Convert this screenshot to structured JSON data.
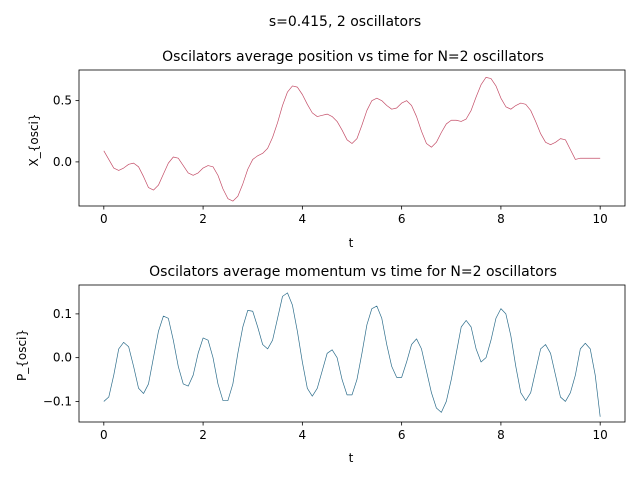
{
  "suptitle": "s=0.415, 2 oscillators",
  "chart_data": [
    {
      "type": "line",
      "title": "Oscilators average position vs time for N=2 oscillators",
      "xlabel": "t",
      "ylabel": "X_{osci}",
      "xlim": [
        -0.5,
        10.5
      ],
      "ylim": [
        -0.36,
        0.75
      ],
      "xticks": [
        0,
        2,
        4,
        6,
        8,
        10
      ],
      "yticks": [
        0.0,
        0.5
      ],
      "ytick_labels": [
        "0.0",
        "0.5"
      ],
      "grid": false,
      "color": "#c44e68",
      "x": [
        0.0,
        0.1,
        0.2,
        0.3,
        0.4,
        0.5,
        0.6,
        0.7,
        0.8,
        0.9,
        1.0,
        1.1,
        1.2,
        1.3,
        1.4,
        1.5,
        1.6,
        1.7,
        1.8,
        1.9,
        2.0,
        2.1,
        2.2,
        2.3,
        2.4,
        2.5,
        2.6,
        2.7,
        2.8,
        2.9,
        3.0,
        3.1,
        3.2,
        3.3,
        3.4,
        3.5,
        3.6,
        3.7,
        3.8,
        3.9,
        4.0,
        4.1,
        4.2,
        4.3,
        4.4,
        4.5,
        4.6,
        4.7,
        4.8,
        4.9,
        5.0,
        5.1,
        5.2,
        5.3,
        5.4,
        5.5,
        5.6,
        5.7,
        5.8,
        5.9,
        6.0,
        6.1,
        6.2,
        6.3,
        6.4,
        6.5,
        6.6,
        6.7,
        6.8,
        6.9,
        7.0,
        7.1,
        7.2,
        7.3,
        7.4,
        7.5,
        7.6,
        7.7,
        7.8,
        7.9,
        8.0,
        8.1,
        8.2,
        8.3,
        8.4,
        8.5,
        8.6,
        8.7,
        8.8,
        8.9,
        9.0,
        9.1,
        9.2,
        9.3,
        9.4,
        9.5,
        9.6,
        9.7,
        9.8,
        9.9,
        10.0
      ],
      "values": [
        0.09,
        0.02,
        -0.05,
        -0.07,
        -0.05,
        -0.02,
        -0.01,
        -0.04,
        -0.12,
        -0.21,
        -0.23,
        -0.19,
        -0.1,
        -0.01,
        0.04,
        0.03,
        -0.03,
        -0.09,
        -0.11,
        -0.09,
        -0.05,
        -0.03,
        -0.04,
        -0.11,
        -0.22,
        -0.3,
        -0.32,
        -0.28,
        -0.18,
        -0.06,
        0.02,
        0.05,
        0.07,
        0.11,
        0.2,
        0.32,
        0.46,
        0.57,
        0.62,
        0.61,
        0.55,
        0.47,
        0.4,
        0.37,
        0.38,
        0.39,
        0.37,
        0.33,
        0.26,
        0.18,
        0.15,
        0.19,
        0.3,
        0.42,
        0.5,
        0.52,
        0.5,
        0.46,
        0.43,
        0.44,
        0.48,
        0.5,
        0.46,
        0.37,
        0.25,
        0.15,
        0.12,
        0.16,
        0.24,
        0.31,
        0.34,
        0.34,
        0.33,
        0.35,
        0.42,
        0.53,
        0.63,
        0.69,
        0.68,
        0.62,
        0.52,
        0.45,
        0.43,
        0.46,
        0.48,
        0.47,
        0.42,
        0.33,
        0.23,
        0.16,
        0.14,
        0.16,
        0.19,
        0.18,
        0.1,
        0.02,
        0.03,
        0.03,
        0.03,
        0.03,
        0.03
      ]
    },
    {
      "type": "line",
      "title": "Oscilators average momentum vs time for N=2 oscillators",
      "xlabel": "t",
      "ylabel": "P_{osci}",
      "xlim": [
        -0.5,
        10.5
      ],
      "ylim": [
        -0.147,
        0.166
      ],
      "xticks": [
        0,
        2,
        4,
        6,
        8,
        10
      ],
      "yticks": [
        -0.1,
        0.0,
        0.1
      ],
      "ytick_labels": [
        "−0.1",
        "0.0",
        "0.1"
      ],
      "grid": false,
      "color": "#2e6e8c",
      "x": [
        0.0,
        0.1,
        0.2,
        0.3,
        0.4,
        0.5,
        0.6,
        0.7,
        0.8,
        0.9,
        1.0,
        1.1,
        1.2,
        1.3,
        1.4,
        1.5,
        1.6,
        1.7,
        1.8,
        1.9,
        2.0,
        2.1,
        2.2,
        2.3,
        2.4,
        2.5,
        2.6,
        2.7,
        2.8,
        2.9,
        3.0,
        3.1,
        3.2,
        3.3,
        3.4,
        3.5,
        3.6,
        3.7,
        3.8,
        3.9,
        4.0,
        4.1,
        4.2,
        4.3,
        4.4,
        4.5,
        4.6,
        4.7,
        4.8,
        4.9,
        5.0,
        5.1,
        5.2,
        5.3,
        5.4,
        5.5,
        5.6,
        5.7,
        5.8,
        5.9,
        6.0,
        6.1,
        6.2,
        6.3,
        6.4,
        6.5,
        6.6,
        6.7,
        6.8,
        6.9,
        7.0,
        7.1,
        7.2,
        7.3,
        7.4,
        7.5,
        7.6,
        7.7,
        7.8,
        7.9,
        8.0,
        8.1,
        8.2,
        8.3,
        8.4,
        8.5,
        8.6,
        8.7,
        8.8,
        8.9,
        9.0,
        9.1,
        9.2,
        9.3,
        9.4,
        9.5,
        9.6,
        9.7,
        9.8,
        9.9,
        10.0
      ],
      "values": [
        -0.1,
        -0.09,
        -0.04,
        0.02,
        0.035,
        0.025,
        -0.02,
        -0.07,
        -0.082,
        -0.06,
        0.0,
        0.06,
        0.095,
        0.09,
        0.04,
        -0.02,
        -0.06,
        -0.065,
        -0.04,
        0.01,
        0.045,
        0.04,
        0.0,
        -0.06,
        -0.098,
        -0.098,
        -0.06,
        0.01,
        0.07,
        0.108,
        0.106,
        0.07,
        0.03,
        0.02,
        0.04,
        0.09,
        0.14,
        0.148,
        0.12,
        0.06,
        -0.01,
        -0.07,
        -0.088,
        -0.07,
        -0.03,
        0.01,
        0.018,
        0.0,
        -0.05,
        -0.085,
        -0.085,
        -0.05,
        0.01,
        0.075,
        0.112,
        0.118,
        0.09,
        0.03,
        -0.02,
        -0.045,
        -0.045,
        -0.01,
        0.03,
        0.043,
        0.02,
        -0.03,
        -0.08,
        -0.115,
        -0.125,
        -0.1,
        -0.05,
        0.01,
        0.07,
        0.085,
        0.07,
        0.02,
        -0.01,
        0.0,
        0.04,
        0.09,
        0.112,
        0.1,
        0.05,
        -0.02,
        -0.08,
        -0.098,
        -0.08,
        -0.03,
        0.02,
        0.03,
        0.01,
        -0.04,
        -0.09,
        -0.1,
        -0.08,
        -0.04,
        0.02,
        0.033,
        0.02,
        -0.04,
        -0.135
      ]
    }
  ]
}
